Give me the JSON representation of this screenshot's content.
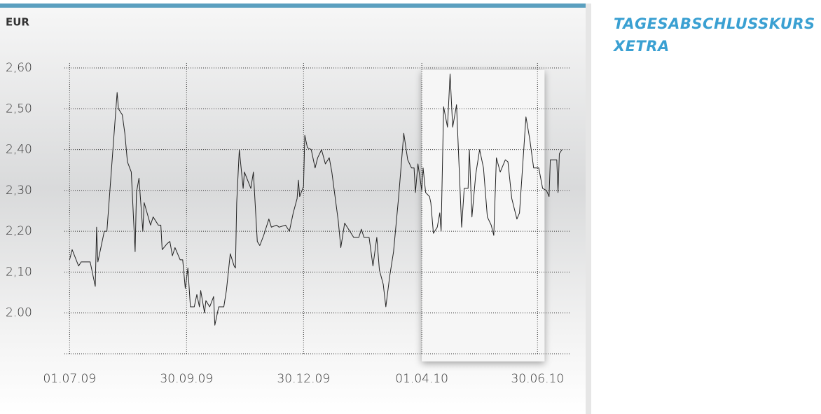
{
  "chart_data": {
    "type": "line",
    "title": "TAGESABSCHLUSSKURS XETRA",
    "y_label": "EUR",
    "color": "#222222",
    "grid": true,
    "highlight": [
      "2010-04-01",
      "2010-06-30"
    ],
    "xlim": [
      "2009-06-27",
      "2010-07-26"
    ],
    "xticks": [
      {
        "value": "2009-07-01",
        "label": "01.07.09"
      },
      {
        "value": "2009-09-30",
        "label": "30.09.09"
      },
      {
        "value": "2009-12-30",
        "label": "30.12.09"
      },
      {
        "value": "2010-04-01",
        "label": "01.04.10"
      },
      {
        "value": "2010-06-30",
        "label": "30.06.10"
      }
    ],
    "ylim": [
      1.9,
      2.6
    ],
    "yticks": [
      {
        "value": 2.0,
        "label": "2.00"
      },
      {
        "value": 2.1,
        "label": "2,10"
      },
      {
        "value": 2.2,
        "label": "2,20"
      },
      {
        "value": 2.3,
        "label": "2,30"
      },
      {
        "value": 2.4,
        "label": "2,40"
      },
      {
        "value": 2.5,
        "label": "2,50"
      },
      {
        "value": 2.6,
        "label": "2,60"
      }
    ],
    "x": [
      "2009-07-01",
      "2009-07-03",
      "2009-07-08",
      "2009-07-10",
      "2009-07-17",
      "2009-07-21",
      "2009-07-22",
      "2009-07-23",
      "2009-07-28",
      "2009-07-30",
      "2009-08-07",
      "2009-08-08",
      "2009-08-11",
      "2009-08-13",
      "2009-08-15",
      "2009-08-18",
      "2009-08-21",
      "2009-08-22",
      "2009-08-24",
      "2009-08-27",
      "2009-08-28",
      "2009-09-02",
      "2009-09-04",
      "2009-09-08",
      "2009-09-10",
      "2009-09-11",
      "2009-09-15",
      "2009-09-17",
      "2009-09-19",
      "2009-09-21",
      "2009-09-25",
      "2009-09-27",
      "2009-09-29",
      "2009-10-01",
      "2009-10-03",
      "2009-10-06",
      "2009-10-08",
      "2009-10-10",
      "2009-10-11",
      "2009-10-14",
      "2009-10-15",
      "2009-10-18",
      "2009-10-21",
      "2009-10-22",
      "2009-10-25",
      "2009-10-29",
      "2009-10-31",
      "2009-11-03",
      "2009-11-06",
      "2009-11-07",
      "2009-11-08",
      "2009-11-10",
      "2009-11-13",
      "2009-11-14",
      "2009-11-19",
      "2009-11-21",
      "2009-11-24",
      "2009-11-26",
      "2009-11-29",
      "2009-12-03",
      "2009-12-05",
      "2009-12-09",
      "2009-12-11",
      "2009-12-16",
      "2009-12-19",
      "2009-12-22",
      "2009-12-25",
      "2009-12-26",
      "2009-12-27",
      "2009-12-30",
      "2009-12-31",
      "2010-01-02",
      "2010-01-05",
      "2010-01-08",
      "2010-01-10",
      "2010-01-13",
      "2010-01-16",
      "2010-01-19",
      "2010-01-21",
      "2010-01-26",
      "2010-01-28",
      "2010-01-31",
      "2010-02-04",
      "2010-02-07",
      "2010-02-11",
      "2010-02-13",
      "2010-02-15",
      "2010-02-19",
      "2010-02-22",
      "2010-02-25",
      "2010-02-27",
      "2010-03-02",
      "2010-03-04",
      "2010-03-07",
      "2010-03-10",
      "2010-03-14",
      "2010-03-18",
      "2010-03-21",
      "2010-03-24",
      "2010-03-26",
      "2010-03-27",
      "2010-03-29",
      "2010-04-01",
      "2010-04-02",
      "2010-04-04",
      "2010-04-07",
      "2010-04-08",
      "2010-04-10",
      "2010-04-13",
      "2010-04-15",
      "2010-04-16",
      "2010-04-18",
      "2010-04-21",
      "2010-04-23",
      "2010-04-25",
      "2010-04-27",
      "2010-04-28",
      "2010-05-02",
      "2010-05-04",
      "2010-05-07",
      "2010-05-08",
      "2010-05-10",
      "2010-05-13",
      "2010-05-16",
      "2010-05-19",
      "2010-05-22",
      "2010-05-25",
      "2010-05-27",
      "2010-05-29",
      "2010-06-01",
      "2010-06-05",
      "2010-06-07",
      "2010-06-10",
      "2010-06-14",
      "2010-06-16",
      "2010-06-21",
      "2010-06-24",
      "2010-06-27",
      "2010-07-01",
      "2010-07-04",
      "2010-07-07",
      "2010-07-09",
      "2010-07-10",
      "2010-07-15",
      "2010-07-16",
      "2010-07-17",
      "2010-07-19"
    ],
    "series": [
      {
        "values": [
          2.13,
          2.155,
          2.115,
          2.125,
          2.125,
          2.065,
          2.21,
          2.125,
          2.2,
          2.2,
          2.54,
          2.5,
          2.485,
          2.44,
          2.37,
          2.345,
          2.15,
          2.295,
          2.33,
          2.2,
          2.27,
          2.215,
          2.235,
          2.215,
          2.215,
          2.155,
          2.17,
          2.175,
          2.14,
          2.16,
          2.13,
          2.13,
          2.06,
          2.11,
          2.015,
          2.015,
          2.045,
          2.015,
          2.055,
          2.0,
          2.03,
          2.015,
          2.04,
          1.97,
          2.015,
          2.015,
          2.055,
          2.145,
          2.115,
          2.11,
          2.27,
          2.4,
          2.305,
          2.345,
          2.305,
          2.345,
          2.175,
          2.165,
          2.19,
          2.23,
          2.21,
          2.215,
          2.21,
          2.215,
          2.2,
          2.245,
          2.28,
          2.325,
          2.285,
          2.31,
          2.435,
          2.405,
          2.4,
          2.355,
          2.38,
          2.4,
          2.365,
          2.38,
          2.345,
          2.225,
          2.16,
          2.22,
          2.2,
          2.185,
          2.185,
          2.205,
          2.185,
          2.185,
          2.115,
          2.185,
          2.105,
          2.07,
          2.015,
          2.09,
          2.15,
          2.285,
          2.44,
          2.375,
          2.355,
          2.355,
          2.295,
          2.365,
          2.3,
          2.355,
          2.295,
          2.285,
          2.27,
          2.195,
          2.21,
          2.245,
          2.2,
          2.505,
          2.455,
          2.585,
          2.455,
          2.49,
          2.51,
          2.21,
          2.305,
          2.305,
          2.4,
          2.235,
          2.34,
          2.4,
          2.355,
          2.235,
          2.215,
          2.19,
          2.38,
          2.345,
          2.375,
          2.37,
          2.28,
          2.23,
          2.245,
          2.48,
          2.425,
          2.355,
          2.355,
          2.305,
          2.3,
          2.285,
          2.375,
          2.375,
          2.295,
          2.39,
          2.4
        ]
      }
    ]
  }
}
